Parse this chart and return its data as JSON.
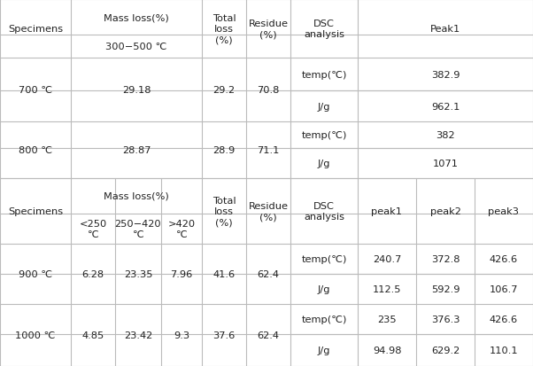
{
  "background_color": "#ffffff",
  "line_color": "#bbbbbb",
  "text_color": "#222222",
  "font_size": 8.2,
  "s1": {
    "cols": [
      0,
      80,
      228,
      278,
      328,
      404,
      602
    ],
    "rows": [
      0,
      40,
      66,
      103,
      138,
      168,
      202
    ]
  },
  "s2": {
    "cols": [
      0,
      80,
      130,
      182,
      228,
      278,
      328,
      404,
      470,
      536,
      602
    ],
    "rows": [
      202,
      242,
      276,
      310,
      344,
      378,
      414
    ]
  }
}
